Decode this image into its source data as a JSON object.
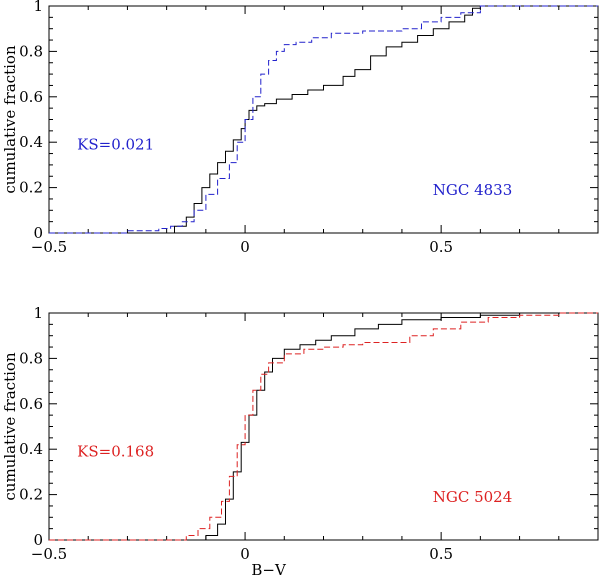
{
  "chart_data": [
    {
      "type": "line",
      "panel": "top",
      "xlabel": "",
      "ylabel": "cumulative fraction",
      "xlim": [
        -0.5,
        0.9
      ],
      "ylim": [
        0,
        1.0
      ],
      "xticks": [
        -0.5,
        0,
        0.5
      ],
      "xtick_labels": [
        "−0.5",
        "0",
        "0.5"
      ],
      "yticks": [
        0,
        0.2,
        0.4,
        0.6,
        0.8,
        1
      ],
      "ytick_labels": [
        "0",
        "0.2",
        "0.4",
        "0.6",
        "0.8",
        "1"
      ],
      "annotations": [
        {
          "text": "KS=0.021",
          "x": -0.33,
          "y": 0.39,
          "color": "#2222cc"
        },
        {
          "text": "NGC 4833",
          "x": 0.58,
          "y": 0.19,
          "color": "#2222cc"
        }
      ],
      "series": [
        {
          "color": "#000000",
          "dash": "solid",
          "x": [
            -0.5,
            -0.2,
            -0.18,
            -0.15,
            -0.13,
            -0.11,
            -0.09,
            -0.07,
            -0.05,
            -0.03,
            -0.01,
            0.0,
            0.01,
            0.03,
            0.05,
            0.08,
            0.12,
            0.16,
            0.2,
            0.25,
            0.28,
            0.32,
            0.36,
            0.4,
            0.44,
            0.48,
            0.52,
            0.56,
            0.58,
            0.6,
            0.65,
            0.9
          ],
          "y": [
            0.0,
            0.0,
            0.03,
            0.07,
            0.13,
            0.2,
            0.26,
            0.31,
            0.36,
            0.41,
            0.46,
            0.5,
            0.54,
            0.56,
            0.57,
            0.59,
            0.61,
            0.63,
            0.65,
            0.69,
            0.72,
            0.78,
            0.82,
            0.84,
            0.87,
            0.9,
            0.93,
            0.96,
            0.99,
            1.0,
            1.0,
            1.0
          ]
        },
        {
          "color": "#2222cc",
          "dash": "dashed",
          "x": [
            -0.5,
            -0.3,
            -0.22,
            -0.19,
            -0.16,
            -0.13,
            -0.1,
            -0.07,
            -0.04,
            -0.02,
            0.0,
            0.02,
            0.04,
            0.06,
            0.08,
            0.1,
            0.13,
            0.17,
            0.22,
            0.3,
            0.4,
            0.45,
            0.5,
            0.55,
            0.6,
            0.7,
            0.9
          ],
          "y": [
            0.0,
            0.01,
            0.02,
            0.03,
            0.05,
            0.1,
            0.17,
            0.24,
            0.31,
            0.4,
            0.5,
            0.6,
            0.7,
            0.76,
            0.8,
            0.83,
            0.84,
            0.86,
            0.88,
            0.89,
            0.9,
            0.93,
            0.95,
            0.97,
            1.0,
            1.0,
            1.0
          ]
        }
      ]
    },
    {
      "type": "line",
      "panel": "bottom",
      "xlabel": "B−V",
      "ylabel": "cumulative fraction",
      "xlim": [
        -0.5,
        0.9
      ],
      "ylim": [
        0,
        1.0
      ],
      "xticks": [
        -0.5,
        0,
        0.5
      ],
      "xtick_labels": [
        "−0.5",
        "0",
        "0.5"
      ],
      "yticks": [
        0,
        0.2,
        0.4,
        0.6,
        0.8,
        1
      ],
      "ytick_labels": [
        "0",
        "0.2",
        "0.4",
        "0.6",
        "0.8",
        "1"
      ],
      "annotations": [
        {
          "text": "KS=0.168",
          "x": -0.33,
          "y": 0.39,
          "color": "#dd2222"
        },
        {
          "text": "NGC 5024",
          "x": 0.58,
          "y": 0.19,
          "color": "#dd2222"
        }
      ],
      "series": [
        {
          "color": "#000000",
          "dash": "solid",
          "x": [
            -0.5,
            -0.13,
            -0.1,
            -0.07,
            -0.05,
            -0.03,
            -0.01,
            0.01,
            0.03,
            0.05,
            0.07,
            0.1,
            0.14,
            0.18,
            0.22,
            0.28,
            0.34,
            0.4,
            0.5,
            0.6,
            0.7,
            0.9
          ],
          "y": [
            0.0,
            0.0,
            0.02,
            0.07,
            0.18,
            0.3,
            0.43,
            0.55,
            0.66,
            0.74,
            0.8,
            0.84,
            0.86,
            0.88,
            0.9,
            0.93,
            0.95,
            0.97,
            0.98,
            0.99,
            1.0,
            1.0
          ]
        },
        {
          "color": "#dd2222",
          "dash": "dashed",
          "x": [
            -0.5,
            -0.18,
            -0.15,
            -0.12,
            -0.09,
            -0.06,
            -0.04,
            -0.02,
            0.0,
            0.02,
            0.04,
            0.06,
            0.1,
            0.15,
            0.2,
            0.25,
            0.3,
            0.38,
            0.42,
            0.48,
            0.55,
            0.62,
            0.7,
            0.8,
            0.9
          ],
          "y": [
            0.0,
            0.0,
            0.02,
            0.05,
            0.1,
            0.17,
            0.28,
            0.42,
            0.55,
            0.66,
            0.73,
            0.78,
            0.82,
            0.84,
            0.85,
            0.86,
            0.87,
            0.87,
            0.9,
            0.93,
            0.96,
            0.98,
            0.99,
            1.0,
            1.0
          ]
        }
      ]
    }
  ]
}
